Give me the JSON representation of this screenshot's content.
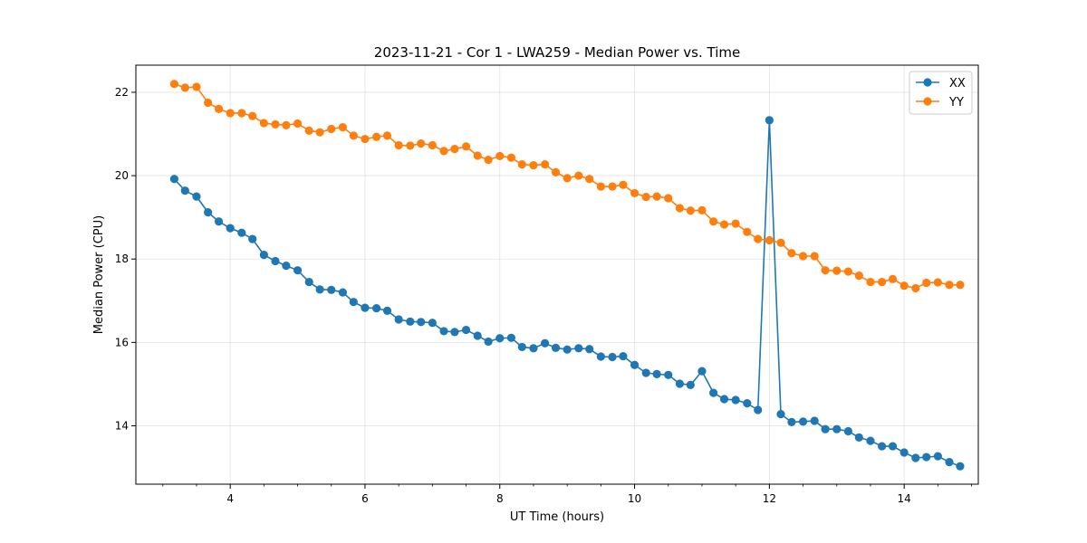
{
  "chart_data": {
    "type": "line",
    "title": "2023-11-21 - Cor 1 - LWA259 - Median Power vs. Time",
    "xlabel": "UT Time (hours)",
    "ylabel": "Median Power (CPU)",
    "xlim": [
      2.6,
      15.1
    ],
    "ylim": [
      12.6,
      22.65
    ],
    "xticks": [
      4,
      6,
      8,
      10,
      12,
      14
    ],
    "xtick_labels": [
      "4",
      "6",
      "8",
      "10",
      "12",
      "14"
    ],
    "yticks": [
      14,
      16,
      18,
      20,
      22
    ],
    "ytick_labels": [
      "14",
      "16",
      "18",
      "20",
      "22"
    ],
    "grid": true,
    "legend_position": "top-right",
    "x": [
      3.17,
      3.33,
      3.5,
      3.67,
      3.83,
      4.0,
      4.17,
      4.33,
      4.5,
      4.67,
      4.83,
      5.0,
      5.17,
      5.33,
      5.5,
      5.67,
      5.83,
      6.0,
      6.17,
      6.33,
      6.5,
      6.67,
      6.83,
      7.0,
      7.17,
      7.33,
      7.5,
      7.67,
      7.83,
      8.0,
      8.17,
      8.33,
      8.5,
      8.67,
      8.83,
      9.0,
      9.17,
      9.33,
      9.5,
      9.67,
      9.83,
      10.0,
      10.17,
      10.33,
      10.5,
      10.67,
      10.83,
      11.0,
      11.17,
      11.33,
      11.5,
      11.67,
      11.83,
      12.0,
      12.17,
      12.33,
      12.5,
      12.67,
      12.83,
      13.0,
      13.17,
      13.33,
      13.5,
      13.67,
      13.83,
      14.0,
      14.17,
      14.33,
      14.5,
      14.67,
      14.83
    ],
    "series": [
      {
        "name": "XX",
        "color": "#1f77b4",
        "values": [
          19.92,
          19.64,
          19.5,
          19.12,
          18.9,
          18.74,
          18.63,
          18.48,
          18.1,
          17.95,
          17.84,
          17.73,
          17.45,
          17.27,
          17.26,
          17.2,
          16.97,
          16.83,
          16.82,
          16.76,
          16.55,
          16.5,
          16.49,
          16.47,
          16.27,
          16.25,
          16.3,
          16.16,
          16.02,
          16.1,
          16.11,
          15.89,
          15.86,
          15.98,
          15.87,
          15.83,
          15.86,
          15.84,
          15.66,
          15.65,
          15.67,
          15.46,
          15.27,
          15.24,
          15.22,
          15.01,
          14.98,
          15.31,
          14.79,
          14.64,
          14.62,
          14.54,
          14.38,
          21.33,
          14.28,
          14.09,
          14.1,
          14.12,
          13.92,
          13.92,
          13.87,
          13.72,
          13.64,
          13.51,
          13.51,
          13.36,
          13.23,
          13.25,
          13.27,
          13.13,
          13.03
        ]
      },
      {
        "name": "YY",
        "color": "#ff7f0e",
        "values": [
          22.2,
          22.11,
          22.13,
          21.75,
          21.6,
          21.5,
          21.5,
          21.43,
          21.26,
          21.23,
          21.21,
          21.25,
          21.08,
          21.04,
          21.12,
          21.16,
          20.96,
          20.88,
          20.93,
          20.96,
          20.73,
          20.72,
          20.77,
          20.73,
          20.59,
          20.64,
          20.7,
          20.48,
          20.38,
          20.47,
          20.43,
          20.27,
          20.25,
          20.27,
          20.08,
          19.94,
          20.0,
          19.92,
          19.74,
          19.74,
          19.78,
          19.58,
          19.49,
          19.5,
          19.46,
          19.22,
          19.16,
          19.17,
          18.9,
          18.83,
          18.85,
          18.65,
          18.48,
          18.45,
          18.39,
          18.14,
          18.07,
          18.07,
          17.73,
          17.72,
          17.7,
          17.6,
          17.45,
          17.45,
          17.52,
          17.36,
          17.3,
          17.43,
          17.44,
          17.38,
          17.38
        ]
      }
    ]
  }
}
